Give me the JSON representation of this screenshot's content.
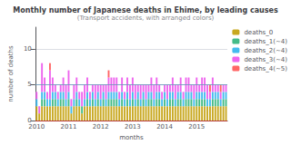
{
  "chart_data": {
    "type": "bar",
    "stacked": true,
    "title": "Monthly number of Japanese deaths in Ehime, by leading causes",
    "subtitle": "(Transport accidents, with arranged colors)",
    "xlabel": "months",
    "ylabel": "number of deaths",
    "categories": [
      "2010",
      null,
      null,
      null,
      null,
      null,
      null,
      null,
      null,
      null,
      null,
      null,
      "2011",
      null,
      null,
      null,
      null,
      null,
      null,
      null,
      null,
      null,
      null,
      null,
      "2012",
      null,
      null,
      null,
      null,
      null,
      null,
      null,
      null,
      null,
      null,
      null,
      "2013",
      null,
      null,
      null,
      null,
      null,
      null,
      null,
      null,
      null,
      null,
      null,
      "2014",
      null,
      null,
      null,
      null,
      null,
      null,
      null,
      null,
      null,
      null,
      null,
      "2015",
      null,
      null,
      null,
      null,
      null,
      null,
      null,
      null,
      null,
      null,
      null
    ],
    "series": [
      {
        "name": "deaths_0",
        "color": "#c8a820",
        "values": [
          2,
          1,
          2,
          2,
          2,
          2,
          2,
          2,
          2,
          2,
          2,
          2,
          2,
          1,
          2,
          2,
          2,
          1,
          2,
          2,
          2,
          2,
          2,
          2,
          2,
          2,
          2,
          2,
          2,
          2,
          2,
          2,
          2,
          2,
          2,
          2,
          2,
          2,
          2,
          2,
          2,
          2,
          2,
          2,
          2,
          2,
          2,
          2,
          2,
          2,
          2,
          2,
          2,
          2,
          2,
          2,
          2,
          2,
          2,
          2,
          2,
          2,
          2,
          2,
          2,
          2,
          2,
          2,
          2,
          2,
          2,
          2
        ]
      },
      {
        "name": "deaths_1(~4)",
        "color": "#44bb88",
        "values": [
          0,
          0,
          1,
          1,
          0,
          0,
          1,
          1,
          0,
          1,
          1,
          0,
          1,
          0,
          0,
          1,
          0,
          1,
          0,
          1,
          0,
          1,
          0,
          1,
          0,
          1,
          0,
          1,
          1,
          1,
          1,
          0,
          1,
          0,
          1,
          0,
          1,
          0,
          1,
          0,
          1,
          0,
          1,
          1,
          0,
          1,
          1,
          0,
          1,
          0,
          1,
          1,
          0,
          1,
          1,
          0,
          1,
          1,
          1,
          0,
          1,
          1,
          1,
          1,
          0,
          0,
          1,
          1,
          1,
          0,
          1,
          1
        ]
      },
      {
        "name": "deaths_2(~4)",
        "color": "#44bbee",
        "values": [
          1,
          0,
          1,
          1,
          1,
          1,
          1,
          1,
          1,
          1,
          1,
          1,
          1,
          1,
          1,
          1,
          1,
          0,
          1,
          1,
          1,
          1,
          1,
          1,
          1,
          1,
          1,
          1,
          1,
          1,
          1,
          1,
          1,
          1,
          1,
          1,
          1,
          1,
          1,
          1,
          1,
          1,
          1,
          1,
          1,
          1,
          1,
          1,
          1,
          1,
          1,
          1,
          1,
          1,
          1,
          1,
          1,
          1,
          1,
          1,
          1,
          1,
          1,
          1,
          1,
          1,
          1,
          1,
          1,
          1,
          1,
          1
        ]
      },
      {
        "name": "deaths_3(~4)",
        "color": "#ee66ee",
        "values": [
          1,
          1,
          4,
          2,
          1,
          4,
          2,
          1,
          1,
          1,
          2,
          2,
          3,
          1,
          2,
          2,
          1,
          2,
          2,
          2,
          1,
          1,
          2,
          1,
          2,
          1,
          2,
          2,
          2,
          2,
          2,
          1,
          2,
          1,
          2,
          2,
          2,
          2,
          1,
          2,
          1,
          2,
          1,
          2,
          2,
          2,
          1,
          1,
          1,
          2,
          1,
          2,
          2,
          1,
          2,
          1,
          2,
          2,
          1,
          2,
          2,
          1,
          2,
          2,
          2,
          1,
          2,
          1,
          1,
          1,
          1,
          1
        ]
      },
      {
        "name": "deaths_4(~5)",
        "color": "#ff6666",
        "values": [
          0,
          0,
          0,
          0,
          0,
          1,
          0,
          0,
          0,
          0,
          0,
          0,
          0,
          0,
          0,
          0,
          0,
          0,
          0,
          0,
          0,
          0,
          0,
          0,
          0,
          0,
          0,
          1,
          0,
          0,
          0,
          0,
          0,
          0,
          0,
          0,
          0,
          0,
          0,
          0,
          0,
          0,
          0,
          0,
          0,
          0,
          0,
          0,
          0,
          0,
          0,
          0,
          0,
          0,
          0,
          0,
          0,
          0,
          0,
          0,
          0,
          0,
          0,
          0,
          0,
          1,
          0,
          0,
          0,
          1,
          0,
          0
        ]
      }
    ],
    "hlines": [
      {
        "y": 5,
        "color": "#6699bb"
      },
      {
        "y": 0,
        "color": "#cc3333"
      }
    ],
    "ylim": [
      0,
      13
    ],
    "yticks": [
      0,
      5,
      10
    ],
    "grid": true,
    "legend": "upper right"
  }
}
